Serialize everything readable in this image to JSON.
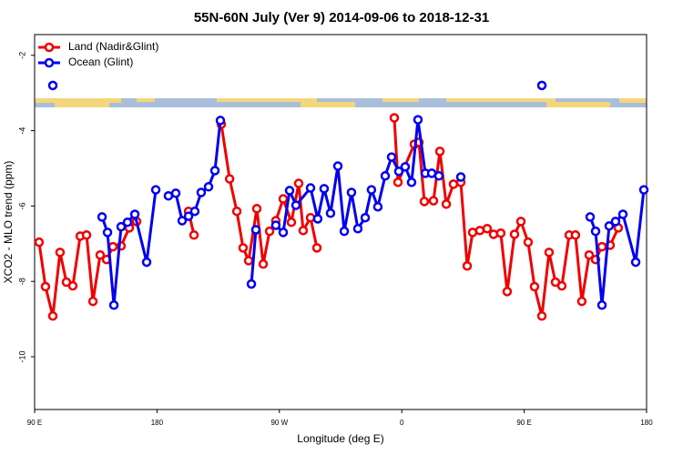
{
  "chart_data": {
    "type": "line",
    "title": "55N-60N July (Ver 9)   2014-09-06 to 2018-12-31",
    "x_label": "Longitude (deg E)",
    "y_label": "XCO2 - MLO trend (ppm)",
    "xlim": [
      90,
      540
    ],
    "ylim": [
      -11.4,
      -1.45
    ],
    "xticks": [
      {
        "value": 90,
        "label": "90 E"
      },
      180,
      {
        "value": 270,
        "label": "90 W"
      },
      {
        "value": 360,
        "label": "0"
      },
      {
        "value": 450,
        "label": "90 E"
      },
      {
        "value": 540,
        "label": "180"
      }
    ],
    "yticks": [
      -2,
      -4,
      -6,
      -8,
      -10
    ],
    "legend": "top-left",
    "series": [
      {
        "name": "Land (Nadir&Glint)",
        "color": "#ee0000",
        "x": [
          93.3,
          98.0,
          103.4,
          108.7,
          113.4,
          118.1,
          123.5,
          128.2,
          132.9,
          138.2,
          142.9,
          147.6,
          153.6,
          159.6,
          165.0,
          null,
          203.2,
          207.2,
          null,
          227.3,
          233.4,
          238.7,
          243.3,
          247.4,
          253.4,
          258.1,
          262.8,
          267.4,
          272.8,
          278.8,
          284.2,
          287.5,
          292.9,
          297.6,
          null,
          354.5,
          357.2,
          369.2,
          372.6,
          376.6,
          383.3,
          388.0,
          392.7,
          398.0,
          403.4,
          408.1,
          412.1,
          417.4,
          422.8,
          427.5,
          432.8,
          437.5,
          442.9,
          447.6,
          452.9,
          457.6,
          463.0,
          468.3,
          473.0,
          477.7,
          483.1,
          487.7,
          492.4,
          497.8,
          502.5,
          507.2,
          513.2,
          519.2
        ],
        "values": [
          -6.96,
          -8.14,
          -8.92,
          -7.23,
          -8.02,
          -8.12,
          -6.8,
          -6.77,
          -8.53,
          -7.3,
          -7.42,
          -7.08,
          -7.06,
          -6.58,
          -6.41,
          null,
          -6.14,
          -6.77,
          null,
          -3.83,
          -5.28,
          -6.14,
          -7.11,
          -7.45,
          -6.07,
          -7.54,
          -6.67,
          -6.39,
          -5.81,
          -6.43,
          -5.4,
          -6.65,
          -6.31,
          -7.11,
          null,
          -3.66,
          -5.37,
          -4.36,
          -4.31,
          -5.88,
          -5.86,
          -4.55,
          -5.95,
          -5.42,
          -5.37,
          -7.59,
          -6.7,
          -6.65,
          -6.6,
          -6.75,
          -6.72,
          -8.27,
          -6.75,
          -6.41,
          -6.96,
          -8.14,
          -8.92,
          -7.23,
          -8.02,
          -8.12,
          -6.77,
          -6.77,
          -8.53,
          -7.3,
          -7.42,
          -7.08,
          -7.04,
          -6.58
        ]
      },
      {
        "name": "Ocean (Glint)",
        "color": "#0000ee",
        "x": [
          103.4,
          null,
          139.6,
          143.6,
          148.3,
          153.6,
          158.3,
          163.7,
          172.4,
          179.1,
          null,
          188.4,
          193.8,
          198.5,
          203.2,
          207.8,
          212.5,
          217.9,
          222.6,
          226.6,
          null,
          249.4,
          252.7,
          null,
          267.4,
          272.8,
          277.5,
          282.2,
          292.9,
          298.2,
          302.9,
          307.6,
          313.0,
          317.7,
          323.0,
          327.7,
          333.1,
          337.7,
          342.4,
          347.8,
          352.5,
          357.8,
          362.5,
          367.2,
          371.9,
          377.3,
          382.0,
          387.3,
          null,
          403.4,
          null,
          463.0,
          null,
          498.5,
          502.5,
          507.2,
          512.5,
          517.2,
          522.6,
          532.0,
          538.0
        ],
        "values": [
          -2.8,
          null,
          -6.29,
          -6.7,
          -8.63,
          -6.55,
          -6.43,
          -6.22,
          -7.49,
          -5.57,
          null,
          -5.73,
          -5.66,
          -6.39,
          -6.27,
          -6.14,
          -5.64,
          -5.49,
          -5.06,
          -3.73,
          null,
          -8.07,
          -6.63,
          null,
          -6.51,
          -6.7,
          -5.59,
          -5.98,
          -5.52,
          -6.34,
          -5.54,
          -6.19,
          -4.94,
          -6.67,
          -5.64,
          -6.6,
          -6.31,
          -5.57,
          -6.02,
          -5.2,
          -4.7,
          -5.08,
          -4.96,
          -5.37,
          -3.71,
          -5.13,
          -5.13,
          -5.2,
          null,
          -5.23,
          null,
          -2.8,
          null,
          -6.29,
          -6.67,
          -8.63,
          -6.53,
          -6.41,
          -6.22,
          -7.49,
          -5.57
        ]
      }
    ]
  }
}
